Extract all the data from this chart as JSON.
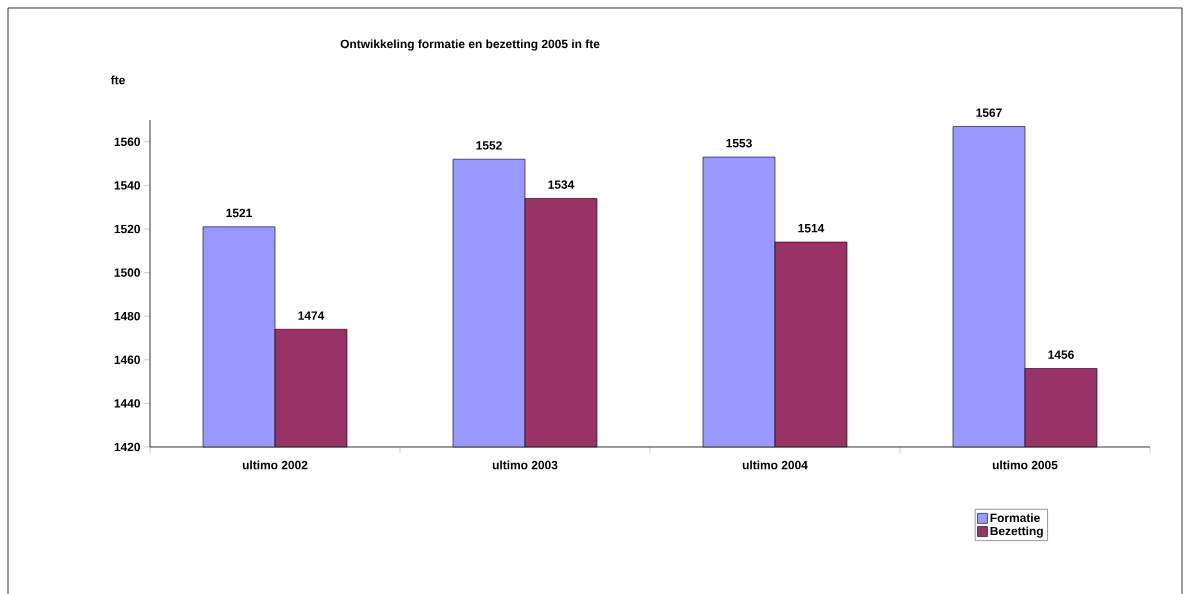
{
  "chart_data": {
    "type": "bar",
    "title": "Ontwikkeling formatie en bezetting 2005 in fte",
    "ylabel": "fte",
    "categories": [
      "ultimo 2002",
      "ultimo 2003",
      "ultimo 2004",
      "ultimo 2005"
    ],
    "series": [
      {
        "name": "Formatie",
        "color": "#9999ff",
        "values": [
          1521,
          1552,
          1553,
          1567
        ]
      },
      {
        "name": "Bezetting",
        "color": "#993366",
        "values": [
          1474,
          1534,
          1514,
          1456
        ]
      }
    ],
    "ylim": [
      1420,
      1570
    ],
    "yticks": [
      1420,
      1440,
      1460,
      1480,
      1500,
      1520,
      1540,
      1560
    ],
    "data_labels": true,
    "legend": "bottom right"
  }
}
